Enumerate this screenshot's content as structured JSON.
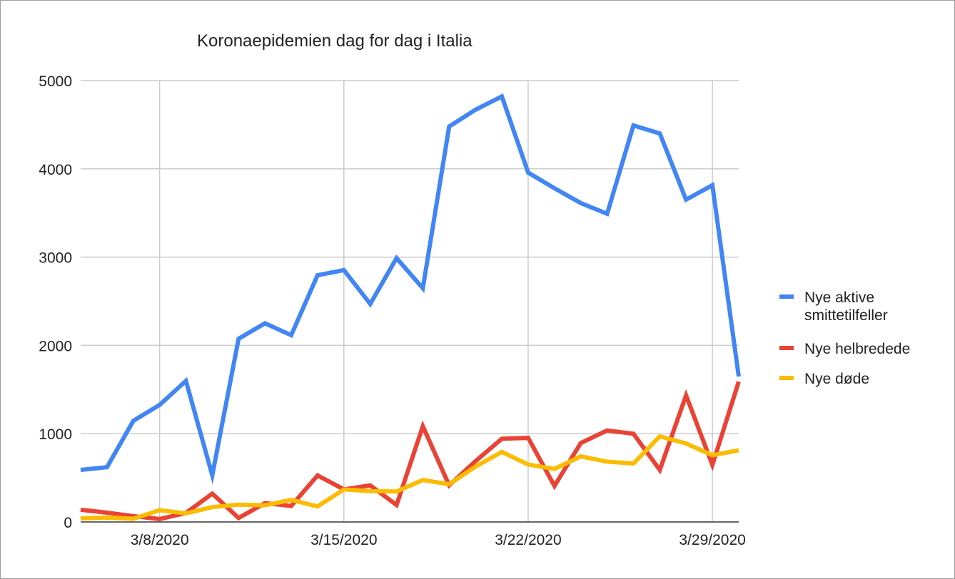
{
  "chart_data": {
    "type": "line",
    "title": "Koronaepidemien dag for dag i Italia",
    "xlabel": "",
    "ylabel": "",
    "ylim": [
      0,
      5000
    ],
    "y_ticks": [
      "0",
      "1000",
      "2000",
      "3000",
      "4000",
      "5000"
    ],
    "x_tick_labels": [
      "3/8/2020",
      "3/15/2020",
      "3/22/2020",
      "3/29/2020"
    ],
    "x_tick_dates": [
      "2020-03-08",
      "2020-03-15",
      "2020-03-22",
      "2020-03-29"
    ],
    "x": [
      "2020-03-05",
      "2020-03-06",
      "2020-03-07",
      "2020-03-08",
      "2020-03-09",
      "2020-03-10",
      "2020-03-11",
      "2020-03-12",
      "2020-03-13",
      "2020-03-14",
      "2020-03-15",
      "2020-03-16",
      "2020-03-17",
      "2020-03-18",
      "2020-03-19",
      "2020-03-20",
      "2020-03-21",
      "2020-03-22",
      "2020-03-23",
      "2020-03-24",
      "2020-03-25",
      "2020-03-26",
      "2020-03-27",
      "2020-03-28",
      "2020-03-29",
      "2020-03-30"
    ],
    "grid": true,
    "legend_position": "right",
    "series": [
      {
        "name": "Nye aktive smittetilfeller",
        "legend_lines": [
          "Nye aktive",
          "smittetilfeller"
        ],
        "color": "#4285f4",
        "values": [
          590,
          620,
          1145,
          1326,
          1598,
          529,
          2076,
          2250,
          2116,
          2795,
          2853,
          2470,
          2989,
          2648,
          4480,
          4670,
          4821,
          3957,
          3780,
          3612,
          3491,
          4492,
          4401,
          3651,
          3815,
          1648
        ]
      },
      {
        "name": "Nye helbredede",
        "legend_lines": [
          "Nye helbredede"
        ],
        "color": "#ea4335",
        "values": [
          138,
          105,
          66,
          33,
          102,
          321,
          45,
          213,
          181,
          527,
          369,
          414,
          192,
          1084,
          415,
          689,
          943,
          952,
          408,
          894,
          1036,
          999,
          589,
          1434,
          646,
          1590
        ]
      },
      {
        "name": "Nye døde",
        "legend_lines": [
          "Nye døde"
        ],
        "color": "#fbbc04",
        "values": [
          41,
          49,
          36,
          133,
          97,
          168,
          196,
          189,
          250,
          175,
          368,
          349,
          345,
          475,
          427,
          627,
          793,
          651,
          601,
          743,
          683,
          662,
          969,
          889,
          756,
          812
        ]
      }
    ]
  }
}
